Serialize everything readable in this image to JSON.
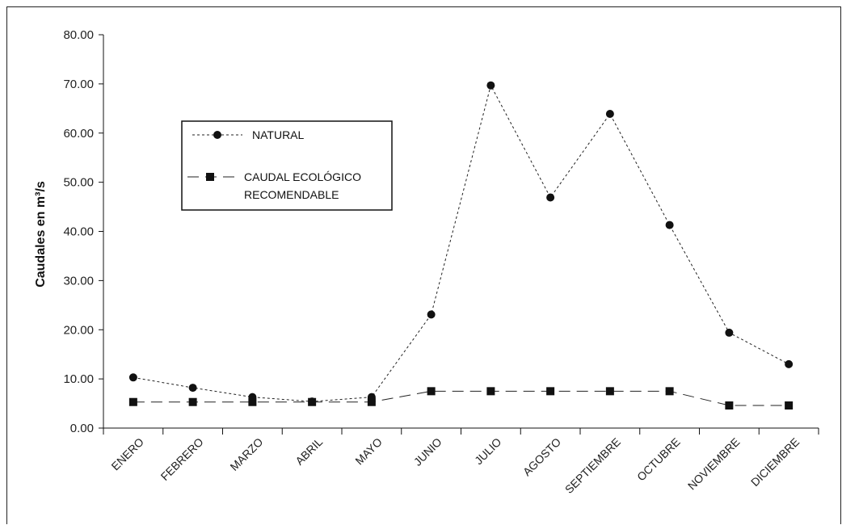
{
  "chart_data": {
    "type": "line",
    "title": "",
    "xlabel": "",
    "ylabel": "Caudales en m³/s",
    "ylim": [
      0,
      80
    ],
    "yticks": [
      "0.00",
      "10.00",
      "20.00",
      "30.00",
      "40.00",
      "50.00",
      "60.00",
      "70.00",
      "80.00"
    ],
    "categories": [
      "ENERO",
      "FEBRERO",
      "MARZO",
      "ABRIL",
      "MAYO",
      "JUNIO",
      "JULIO",
      "AGOSTO",
      "SEPTIEMBRE",
      "OCTUBRE",
      "NOVIEMBRE",
      "DICIEMBRE"
    ],
    "legend_position": "top-left",
    "series": [
      {
        "name": "NATURAL",
        "marker": "circle",
        "line": "dotted",
        "values": [
          10.3,
          8.2,
          6.3,
          5.4,
          6.3,
          23.1,
          69.7,
          46.9,
          63.9,
          41.3,
          19.4,
          13.0
        ]
      },
      {
        "name": "CAUDAL ECOLÓGICO RECOMENDABLE",
        "name_lines": [
          "CAUDAL ECOLÓGICO",
          "RECOMENDABLE"
        ],
        "marker": "square",
        "line": "dashed",
        "values": [
          5.3,
          5.3,
          5.3,
          5.3,
          5.3,
          7.5,
          7.5,
          7.5,
          7.5,
          7.5,
          4.6,
          4.6
        ]
      }
    ],
    "colors": {
      "line": "#222222",
      "marker": "#111111"
    }
  }
}
